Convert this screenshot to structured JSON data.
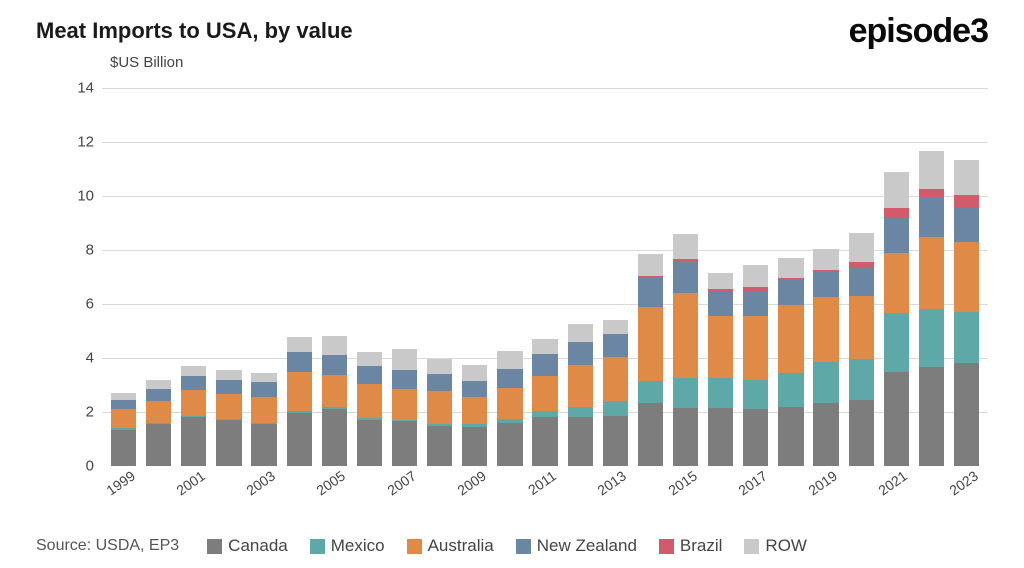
{
  "title": "Meat Imports to USA, by value",
  "title_fontsize": 22,
  "title_color": "#1a1a1a",
  "logo": "episode3",
  "logo_fontsize": 34,
  "logo_color": "#0a0a0a",
  "ylabel": "$US Billion",
  "source": "Source: USDA, EP3",
  "chart": {
    "type": "stacked-bar",
    "background_color": "#ffffff",
    "grid_color": "#d9d9d9",
    "ylim": [
      0,
      14
    ],
    "ytick_step": 2,
    "yticks": [
      0,
      2,
      4,
      6,
      8,
      10,
      12,
      14
    ],
    "xlabel_step": 2,
    "categories": [
      "1999",
      "2000",
      "2001",
      "2002",
      "2003",
      "2004",
      "2005",
      "2006",
      "2007",
      "2008",
      "2009",
      "2010",
      "2011",
      "2012",
      "2013",
      "2014",
      "2015",
      "2016",
      "2017",
      "2018",
      "2019",
      "2020",
      "2021",
      "2022",
      "2023"
    ],
    "series": [
      {
        "name": "Canada",
        "color": "#7d7d7d"
      },
      {
        "name": "Mexico",
        "color": "#5ea9a8"
      },
      {
        "name": "Australia",
        "color": "#e08a47"
      },
      {
        "name": "New Zealand",
        "color": "#6b86a3"
      },
      {
        "name": "Brazil",
        "color": "#d15a6b"
      },
      {
        "name": "ROW",
        "color": "#c9c9c9"
      }
    ],
    "data": [
      {
        "Canada": 1.35,
        "Mexico": 0.05,
        "Australia": 0.7,
        "New Zealand": 0.35,
        "Brazil": 0.0,
        "ROW": 0.25
      },
      {
        "Canada": 1.55,
        "Mexico": 0.05,
        "Australia": 0.8,
        "New Zealand": 0.45,
        "Brazil": 0.0,
        "ROW": 0.35
      },
      {
        "Canada": 1.8,
        "Mexico": 0.05,
        "Australia": 0.95,
        "New Zealand": 0.55,
        "Brazil": 0.0,
        "ROW": 0.35
      },
      {
        "Canada": 1.7,
        "Mexico": 0.05,
        "Australia": 0.9,
        "New Zealand": 0.55,
        "Brazil": 0.0,
        "ROW": 0.35
      },
      {
        "Canada": 1.55,
        "Mexico": 0.05,
        "Australia": 0.95,
        "New Zealand": 0.55,
        "Brazil": 0.0,
        "ROW": 0.35
      },
      {
        "Canada": 1.95,
        "Mexico": 0.07,
        "Australia": 1.45,
        "New Zealand": 0.75,
        "Brazil": 0.0,
        "ROW": 0.55
      },
      {
        "Canada": 2.1,
        "Mexico": 0.07,
        "Australia": 1.2,
        "New Zealand": 0.75,
        "Brazil": 0.0,
        "ROW": 0.7
      },
      {
        "Canada": 1.7,
        "Mexico": 0.07,
        "Australia": 1.25,
        "New Zealand": 0.7,
        "Brazil": 0.0,
        "ROW": 0.5
      },
      {
        "Canada": 1.65,
        "Mexico": 0.07,
        "Australia": 1.15,
        "New Zealand": 0.7,
        "Brazil": 0.0,
        "ROW": 0.75
      },
      {
        "Canada": 1.5,
        "Mexico": 0.07,
        "Australia": 1.2,
        "New Zealand": 0.65,
        "Brazil": 0.0,
        "ROW": 0.55
      },
      {
        "Canada": 1.45,
        "Mexico": 0.1,
        "Australia": 1.0,
        "New Zealand": 0.6,
        "Brazil": 0.0,
        "ROW": 0.6
      },
      {
        "Canada": 1.6,
        "Mexico": 0.15,
        "Australia": 1.15,
        "New Zealand": 0.7,
        "Brazil": 0.0,
        "ROW": 0.65
      },
      {
        "Canada": 1.8,
        "Mexico": 0.25,
        "Australia": 1.3,
        "New Zealand": 0.8,
        "Brazil": 0.0,
        "ROW": 0.55
      },
      {
        "Canada": 1.8,
        "Mexico": 0.4,
        "Australia": 1.55,
        "New Zealand": 0.85,
        "Brazil": 0.0,
        "ROW": 0.65
      },
      {
        "Canada": 1.85,
        "Mexico": 0.55,
        "Australia": 1.65,
        "New Zealand": 0.85,
        "Brazil": 0.0,
        "ROW": 0.5
      },
      {
        "Canada": 2.35,
        "Mexico": 0.8,
        "Australia": 2.75,
        "New Zealand": 1.1,
        "Brazil": 0.05,
        "ROW": 0.8
      },
      {
        "Canada": 2.15,
        "Mexico": 1.1,
        "Australia": 3.15,
        "New Zealand": 1.15,
        "Brazil": 0.1,
        "ROW": 0.95
      },
      {
        "Canada": 2.15,
        "Mexico": 1.1,
        "Australia": 2.3,
        "New Zealand": 0.95,
        "Brazil": 0.05,
        "ROW": 0.6
      },
      {
        "Canada": 2.1,
        "Mexico": 1.1,
        "Australia": 2.35,
        "New Zealand": 0.95,
        "Brazil": 0.15,
        "ROW": 0.8
      },
      {
        "Canada": 2.2,
        "Mexico": 1.25,
        "Australia": 2.5,
        "New Zealand": 0.95,
        "Brazil": 0.05,
        "ROW": 0.75
      },
      {
        "Canada": 2.35,
        "Mexico": 1.5,
        "Australia": 2.4,
        "New Zealand": 0.95,
        "Brazil": 0.05,
        "ROW": 0.8
      },
      {
        "Canada": 2.45,
        "Mexico": 1.5,
        "Australia": 2.35,
        "New Zealand": 1.05,
        "Brazil": 0.2,
        "ROW": 1.1
      },
      {
        "Canada": 3.5,
        "Mexico": 2.15,
        "Australia": 2.25,
        "New Zealand": 1.3,
        "Brazil": 0.35,
        "ROW": 1.35
      },
      {
        "Canada": 3.65,
        "Mexico": 2.15,
        "Australia": 2.7,
        "New Zealand": 1.45,
        "Brazil": 0.3,
        "ROW": 1.4
      },
      {
        "Canada": 3.8,
        "Mexico": 1.9,
        "Australia": 2.6,
        "New Zealand": 1.25,
        "Brazil": 0.5,
        "ROW": 1.3
      }
    ]
  }
}
